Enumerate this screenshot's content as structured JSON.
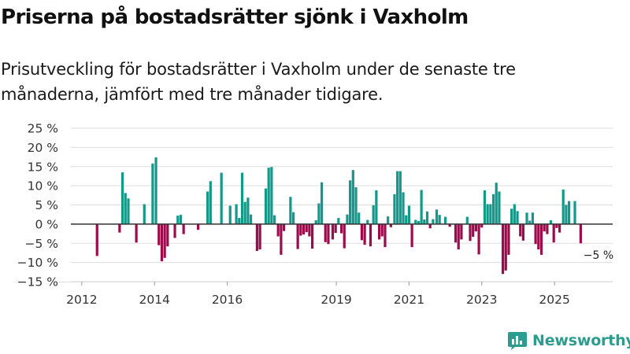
{
  "title": "Priserna på bostadsrätter sjönk i Vaxholm",
  "subtitle": "Prisutveckling för bostadsrätter i Vaxholm under de senaste tre månaderna, jämfört med tre månader tidigare.",
  "brand": {
    "name": "Newsworthy"
  },
  "colors": {
    "positive": "#13988a",
    "negative": "#9c0b4c",
    "grid": "#dddddd",
    "axis": "#333333",
    "text": "#333333"
  },
  "chart_data": {
    "type": "bar",
    "title": "Priserna på bostadsrätter sjönk i Vaxholm",
    "xlabel": "",
    "ylabel": "",
    "ylim": [
      -15,
      25
    ],
    "yticks": [
      25,
      20,
      15,
      10,
      5,
      0,
      -5,
      -10,
      -15
    ],
    "ytick_labels": [
      "25 %",
      "20 %",
      "15 %",
      "10 %",
      "5 %",
      "0 %",
      "−5 %",
      "−10 %",
      "−15 %"
    ],
    "xlim": [
      2011.7,
      2026.6
    ],
    "xticks": [
      2012,
      2014,
      2016,
      2019,
      2021,
      2023,
      2025
    ],
    "xtick_labels": [
      "2012",
      "2014",
      "2016",
      "2019",
      "2021",
      "2023",
      "2025"
    ],
    "annotation": {
      "x": 2025.75,
      "y": -5,
      "text": "−5 %"
    },
    "series": [
      {
        "name": "Prisutveckling",
        "points": [
          [
            2012.42,
            -8.3
          ],
          [
            2013.04,
            -2.2
          ],
          [
            2013.12,
            13.5
          ],
          [
            2013.2,
            8.1
          ],
          [
            2013.28,
            6.7
          ],
          [
            2013.5,
            -4.8
          ],
          [
            2013.72,
            5.2
          ],
          [
            2013.95,
            15.8
          ],
          [
            2014.04,
            17.4
          ],
          [
            2014.12,
            -5.5
          ],
          [
            2014.2,
            -9.7
          ],
          [
            2014.28,
            -8.8
          ],
          [
            2014.36,
            -5.8
          ],
          [
            2014.56,
            -3.6
          ],
          [
            2014.64,
            2.2
          ],
          [
            2014.72,
            2.4
          ],
          [
            2014.8,
            -2.6
          ],
          [
            2015.2,
            -1.5
          ],
          [
            2015.46,
            8.5
          ],
          [
            2015.54,
            11.2
          ],
          [
            2015.84,
            13.4
          ],
          [
            2016.08,
            4.8
          ],
          [
            2016.25,
            5.2
          ],
          [
            2016.33,
            1.6
          ],
          [
            2016.41,
            13.4
          ],
          [
            2016.49,
            5.8
          ],
          [
            2016.57,
            6.9
          ],
          [
            2016.65,
            2.5
          ],
          [
            2016.82,
            -7.0
          ],
          [
            2016.9,
            -6.6
          ],
          [
            2017.06,
            9.3
          ],
          [
            2017.14,
            14.7
          ],
          [
            2017.22,
            14.9
          ],
          [
            2017.3,
            2.3
          ],
          [
            2017.4,
            -3.2
          ],
          [
            2017.48,
            -8.0
          ],
          [
            2017.56,
            -1.8
          ],
          [
            2017.74,
            7.1
          ],
          [
            2017.82,
            3.1
          ],
          [
            2017.94,
            -6.5
          ],
          [
            2018.02,
            -3.0
          ],
          [
            2018.1,
            -2.7
          ],
          [
            2018.18,
            -2.1
          ],
          [
            2018.26,
            -3.2
          ],
          [
            2018.34,
            -6.4
          ],
          [
            2018.44,
            1.0
          ],
          [
            2018.52,
            5.4
          ],
          [
            2018.6,
            10.9
          ],
          [
            2018.7,
            -4.7
          ],
          [
            2018.78,
            -5.2
          ],
          [
            2018.9,
            -4.0
          ],
          [
            2018.98,
            -2.3
          ],
          [
            2019.06,
            1.6
          ],
          [
            2019.14,
            -2.4
          ],
          [
            2019.22,
            -6.3
          ],
          [
            2019.3,
            2.5
          ],
          [
            2019.38,
            11.4
          ],
          [
            2019.46,
            14.1
          ],
          [
            2019.54,
            9.6
          ],
          [
            2019.62,
            3.0
          ],
          [
            2019.7,
            -4.2
          ],
          [
            2019.78,
            -5.4
          ],
          [
            2019.86,
            1.1
          ],
          [
            2019.94,
            -5.8
          ],
          [
            2020.02,
            4.9
          ],
          [
            2020.1,
            8.8
          ],
          [
            2020.18,
            -4.0
          ],
          [
            2020.26,
            -3.2
          ],
          [
            2020.34,
            -6.0
          ],
          [
            2020.42,
            2.0
          ],
          [
            2020.5,
            -0.8
          ],
          [
            2020.6,
            7.8
          ],
          [
            2020.68,
            13.8
          ],
          [
            2020.76,
            13.8
          ],
          [
            2020.84,
            8.3
          ],
          [
            2020.92,
            2.3
          ],
          [
            2021.0,
            4.8
          ],
          [
            2021.08,
            -6.0
          ],
          [
            2021.18,
            1.1
          ],
          [
            2021.26,
            0.8
          ],
          [
            2021.34,
            8.9
          ],
          [
            2021.42,
            1.2
          ],
          [
            2021.5,
            3.3
          ],
          [
            2021.58,
            -1.1
          ],
          [
            2021.66,
            1.3
          ],
          [
            2021.76,
            3.8
          ],
          [
            2021.84,
            2.4
          ],
          [
            2022.0,
            1.9
          ],
          [
            2022.12,
            -0.7
          ],
          [
            2022.28,
            -4.8
          ],
          [
            2022.36,
            -6.6
          ],
          [
            2022.44,
            -4.0
          ],
          [
            2022.6,
            1.9
          ],
          [
            2022.68,
            -4.4
          ],
          [
            2022.76,
            -3.3
          ],
          [
            2022.84,
            -1.9
          ],
          [
            2022.92,
            -7.9
          ],
          [
            2023.0,
            -0.9
          ],
          [
            2023.08,
            8.8
          ],
          [
            2023.16,
            5.2
          ],
          [
            2023.24,
            5.2
          ],
          [
            2023.32,
            7.8
          ],
          [
            2023.4,
            10.8
          ],
          [
            2023.48,
            8.5
          ],
          [
            2023.58,
            -13.0
          ],
          [
            2023.66,
            -12.1
          ],
          [
            2023.74,
            -8.0
          ],
          [
            2023.82,
            4.0
          ],
          [
            2023.9,
            5.2
          ],
          [
            2023.98,
            3.4
          ],
          [
            2024.06,
            -3.2
          ],
          [
            2024.14,
            -4.3
          ],
          [
            2024.24,
            3.0
          ],
          [
            2024.32,
            0.9
          ],
          [
            2024.4,
            3.0
          ],
          [
            2024.48,
            -5.2
          ],
          [
            2024.56,
            -6.6
          ],
          [
            2024.64,
            -8.0
          ],
          [
            2024.72,
            -1.9
          ],
          [
            2024.8,
            -2.6
          ],
          [
            2024.9,
            1.0
          ],
          [
            2024.98,
            -4.8
          ],
          [
            2025.06,
            -1.0
          ],
          [
            2025.14,
            -2.2
          ],
          [
            2025.24,
            9.0
          ],
          [
            2025.32,
            5.0
          ],
          [
            2025.4,
            6.0
          ],
          [
            2025.56,
            6.0
          ],
          [
            2025.72,
            -5.0
          ]
        ]
      }
    ]
  }
}
